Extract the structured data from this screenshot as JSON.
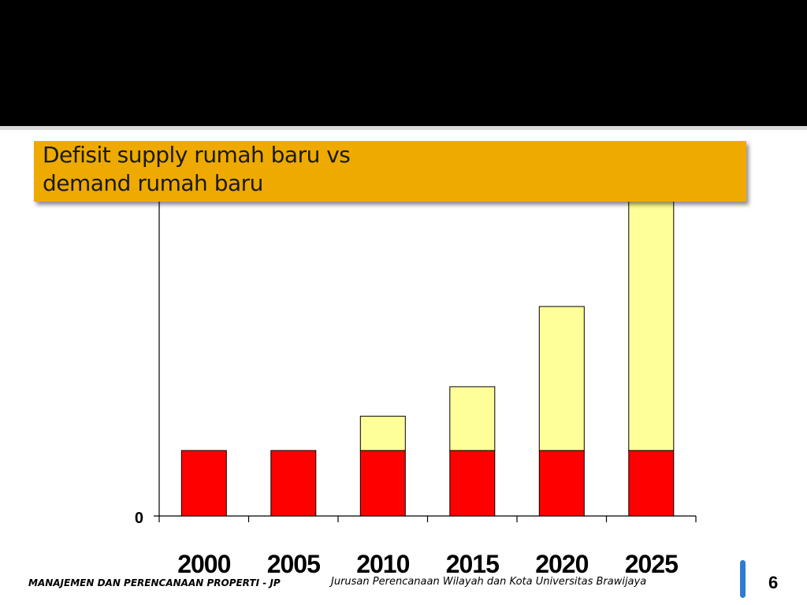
{
  "slide": {
    "title": "Defisit  supply rumah baru vs\ndemand rumah baru",
    "footer_left": "MANAJEMEN DAN PERENCANAAN PROPERTI - JP",
    "footer_center": "Jurusan Perencanaan Wilayah dan Kota  Universitas Brawijaya",
    "page_number": "6",
    "colors": {
      "header": "#000000",
      "title_box": "#eeaa00",
      "accent": "#2e7bcf"
    }
  },
  "chart_data": {
    "type": "bar",
    "stacked": true,
    "categories": [
      "2000",
      "2005",
      "2010",
      "2015",
      "2020",
      "2025"
    ],
    "series": [
      {
        "values": [
          20,
          20,
          20,
          20,
          20,
          20
        ],
        "color": "#ff0000"
      },
      {
        "values": [
          0,
          0,
          10.5,
          19.5,
          44,
          80
        ],
        "color": "#ffff99"
      }
    ],
    "ylim": [
      0,
      100
    ],
    "y_tick_labels": [
      "0"
    ],
    "grid": false,
    "legend": "none"
  }
}
